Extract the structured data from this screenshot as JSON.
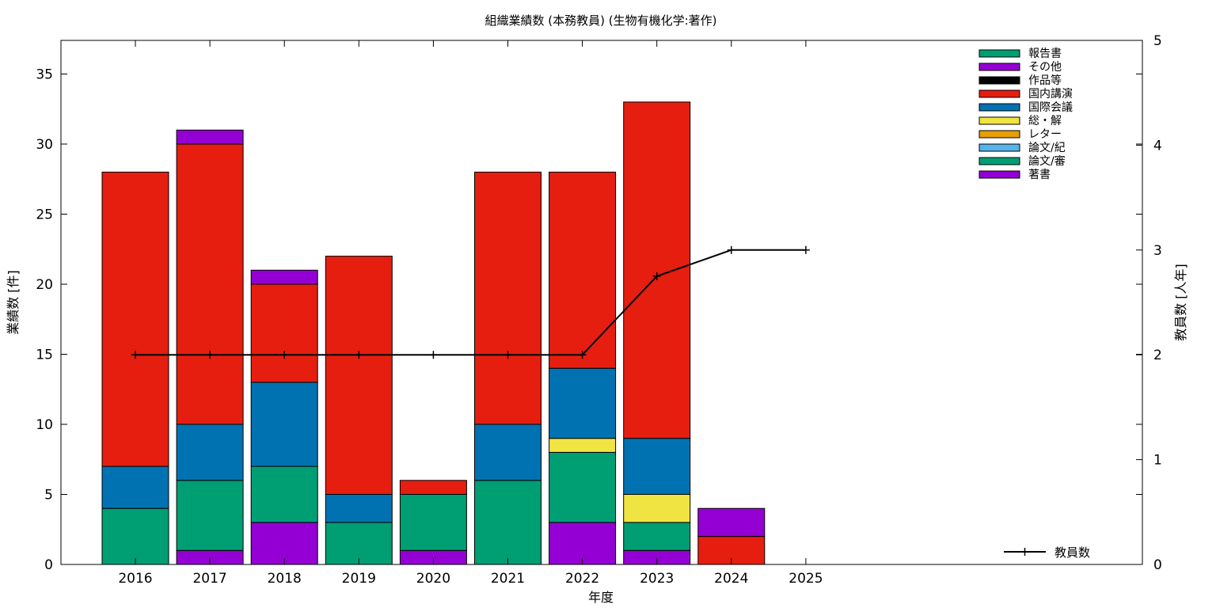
{
  "chart_data": {
    "type": "bar",
    "stacked": true,
    "title": "組織業績数 (本務教員) (生物有機化学:著作)",
    "xlabel": "年度",
    "ylabel": "業績数 [件]",
    "y2label": "教員数 [人年]",
    "categories": [
      "2016",
      "2017",
      "2018",
      "2019",
      "2020",
      "2021",
      "2022",
      "2023",
      "2024",
      "2025"
    ],
    "ylim": [
      0,
      37.4
    ],
    "yticks": [
      0,
      5,
      10,
      15,
      20,
      25,
      30,
      35
    ],
    "y2lim": [
      0,
      5
    ],
    "y2ticks": [
      0,
      1,
      2,
      3,
      4,
      5
    ],
    "grid": false,
    "legend_position": "top-right",
    "series": [
      {
        "name": "著書",
        "color": "#9400d3",
        "values": [
          0,
          1,
          3,
          0,
          1,
          0,
          3,
          1,
          0,
          0
        ]
      },
      {
        "name": "論文/審",
        "color": "#009e73",
        "values": [
          4,
          5,
          4,
          3,
          4,
          6,
          5,
          2,
          0,
          0
        ]
      },
      {
        "name": "論文/紀",
        "color": "#56b4e9",
        "values": [
          0,
          0,
          0,
          0,
          0,
          0,
          0,
          0,
          0,
          0
        ]
      },
      {
        "name": "レター",
        "color": "#e69f00",
        "values": [
          0,
          0,
          0,
          0,
          0,
          0,
          0,
          0,
          0,
          0
        ]
      },
      {
        "name": "総・解",
        "color": "#f0e442",
        "values": [
          0,
          0,
          0,
          0,
          0,
          0,
          1,
          2,
          0,
          0
        ]
      },
      {
        "name": "国際会議",
        "color": "#0072b2",
        "values": [
          3,
          4,
          6,
          2,
          0,
          4,
          5,
          4,
          0,
          0
        ]
      },
      {
        "name": "国内講演",
        "color": "#e51e10",
        "values": [
          21,
          20,
          7,
          17,
          1,
          18,
          14,
          24,
          2,
          0
        ]
      },
      {
        "name": "作品等",
        "color": "#000000",
        "values": [
          0,
          0,
          0,
          0,
          0,
          0,
          0,
          0,
          0,
          0
        ]
      },
      {
        "name": "その他",
        "color": "#9400d3",
        "values": [
          0,
          1,
          1,
          0,
          0,
          0,
          0,
          0,
          2,
          0
        ]
      },
      {
        "name": "報告書",
        "color": "#009e73",
        "values": [
          0,
          0,
          0,
          0,
          0,
          0,
          0,
          0,
          0,
          0
        ]
      }
    ],
    "legend_order": [
      "報告書",
      "その他",
      "作品等",
      "国内講演",
      "国際会議",
      "総・解",
      "レター",
      "論文/紀",
      "論文/審",
      "著書"
    ],
    "line_series": {
      "name": "教員数",
      "axis": "y2",
      "color": "#000000",
      "values": [
        2,
        2,
        2,
        2,
        2,
        2,
        2,
        2.75,
        3,
        3
      ]
    }
  }
}
